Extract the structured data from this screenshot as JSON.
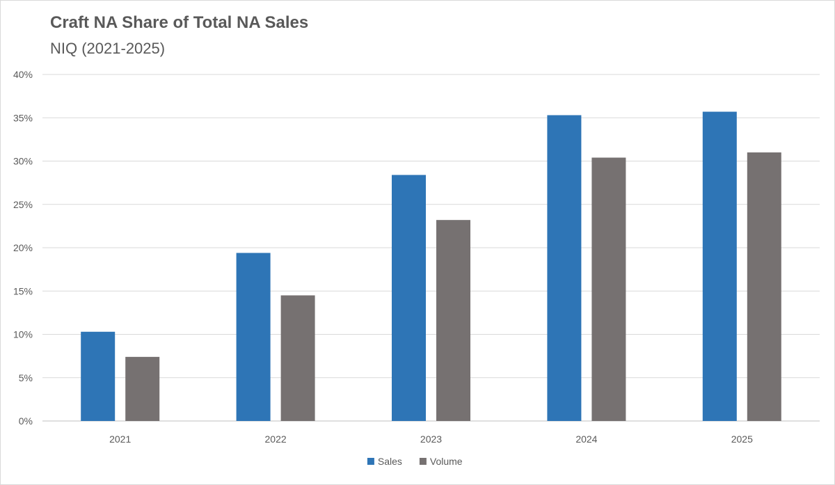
{
  "chart_data": {
    "type": "bar",
    "title": "Craft NA Share of Total NA Sales",
    "subtitle": "NIQ (2021-2025)",
    "categories": [
      "2021",
      "2022",
      "2023",
      "2024",
      "2025"
    ],
    "series": [
      {
        "name": "Sales",
        "color": "#2e75b6",
        "values": [
          10.3,
          19.4,
          28.4,
          35.3,
          35.7
        ]
      },
      {
        "name": "Volume",
        "color": "#767171",
        "values": [
          7.4,
          14.5,
          23.2,
          30.4,
          31.0
        ]
      }
    ],
    "ylim": [
      0,
      40
    ],
    "yticks": [
      0,
      5,
      10,
      15,
      20,
      25,
      30,
      35,
      40
    ],
    "ytick_suffix": "%",
    "grid": true,
    "legend": "bottom-center"
  }
}
